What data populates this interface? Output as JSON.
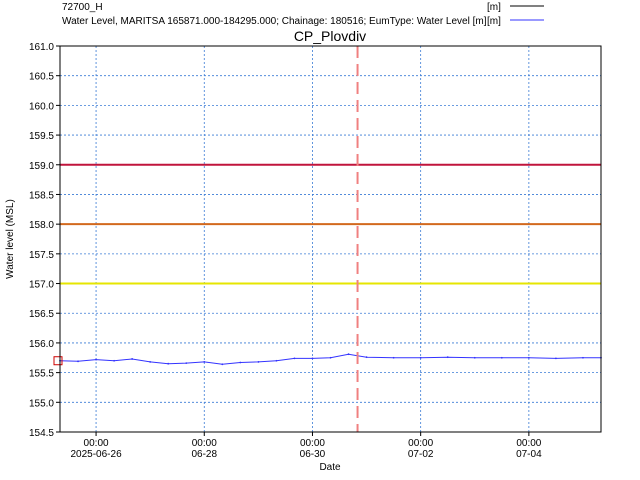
{
  "chart_data": {
    "type": "line",
    "title": "CP_Plovdiv",
    "xlabel": "Date",
    "ylabel": "Water level (MSL)",
    "ylim": [
      154.5,
      161.0
    ],
    "xlim": [
      "2025-06-25T08:00",
      "2025-07-05T08:00"
    ],
    "grid": true,
    "legend_position": "top-right",
    "x_ticks": [
      {
        "x": "2025-06-26T00:00",
        "time": "00:00",
        "date": "2025-06-26"
      },
      {
        "x": "2025-06-28T00:00",
        "time": "00:00",
        "date": "06-28"
      },
      {
        "x": "2025-06-30T00:00",
        "time": "00:00",
        "date": "06-30"
      },
      {
        "x": "2025-07-02T00:00",
        "time": "00:00",
        "date": "07-02"
      },
      {
        "x": "2025-07-04T00:00",
        "time": "00:00",
        "date": "07-04"
      }
    ],
    "y_ticks": [
      "154.5",
      "155.0",
      "155.5",
      "156.0",
      "156.5",
      "157.0",
      "157.5",
      "158.0",
      "158.5",
      "159.0",
      "159.5",
      "160.0",
      "160.5",
      "161.0"
    ],
    "legend": [
      {
        "name": "72700_H",
        "unit": "[m]",
        "color": "#000000"
      },
      {
        "name": "Water Level, MARITSA 165871.000-184295.000; Chainage: 180516; EumType: Water Level [m]",
        "unit": "[m]",
        "color": "#3333ff"
      }
    ],
    "thresholds": [
      {
        "y": 159.0,
        "color": "#c0143c"
      },
      {
        "y": 158.0,
        "color": "#d2691e"
      },
      {
        "y": 157.0,
        "color": "#e6e600"
      }
    ],
    "current_time_marker": {
      "x": "2025-06-30T20:00",
      "color": "#f08080"
    },
    "series": [
      {
        "name": "Water Level, MARITSA 165871.000-184295.000; Chainage: 180516; EumType: Water Level [m]",
        "color": "#3333ff",
        "x": [
          "2025-06-25T08:00",
          "2025-06-25T16:00",
          "2025-06-26T00:00",
          "2025-06-26T08:00",
          "2025-06-26T16:00",
          "2025-06-27T00:00",
          "2025-06-27T08:00",
          "2025-06-27T16:00",
          "2025-06-28T00:00",
          "2025-06-28T08:00",
          "2025-06-28T16:00",
          "2025-06-29T00:00",
          "2025-06-29T08:00",
          "2025-06-29T16:00",
          "2025-06-30T00:00",
          "2025-06-30T08:00",
          "2025-06-30T16:00",
          "2025-07-01T00:00",
          "2025-07-01T12:00",
          "2025-07-02T00:00",
          "2025-07-02T12:00",
          "2025-07-03T00:00",
          "2025-07-03T12:00",
          "2025-07-04T00:00",
          "2025-07-04T12:00",
          "2025-07-05T00:00",
          "2025-07-05T08:00"
        ],
        "y": [
          155.7,
          155.69,
          155.72,
          155.7,
          155.73,
          155.68,
          155.65,
          155.66,
          155.68,
          155.64,
          155.67,
          155.68,
          155.7,
          155.74,
          155.74,
          155.75,
          155.81,
          155.76,
          155.75,
          155.75,
          155.76,
          155.75,
          155.75,
          155.75,
          155.74,
          155.75,
          155.75
        ]
      }
    ],
    "start_marker": {
      "x": "2025-06-25T08:00",
      "y": 155.7,
      "color": "#cc0000"
    }
  }
}
